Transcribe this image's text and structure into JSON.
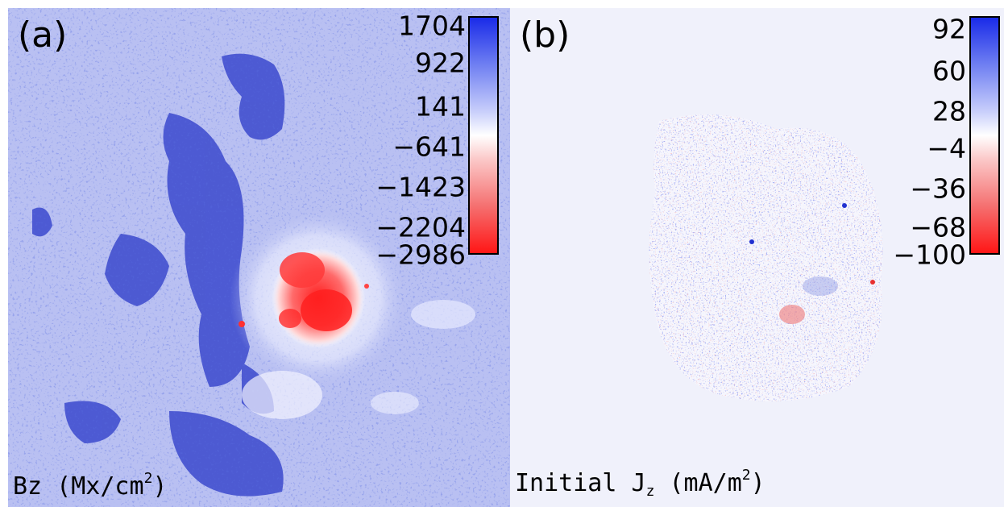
{
  "panels": [
    {
      "letter": "(a)",
      "label_main": "Bz (Mx/cm",
      "label_sup": "2",
      "label_end": ")",
      "colorbar_ticks": [
        "1704",
        "922",
        "141",
        "−641",
        "−1423",
        "−2204",
        "−2986"
      ],
      "background": "#b9c0f2"
    },
    {
      "letter": "(b)",
      "label_main": "Initial J",
      "label_sub": "z",
      "label_mid": " (mA/m",
      "label_sup": "2",
      "label_end": ")",
      "colorbar_ticks": [
        "92",
        "60",
        "28",
        "−4",
        "−36",
        "−68",
        "−100"
      ],
      "background": "#f0f1fb"
    }
  ],
  "colors": {
    "positive": "#1a2be8",
    "negative": "#ff1616",
    "zero": "#ffffff"
  }
}
